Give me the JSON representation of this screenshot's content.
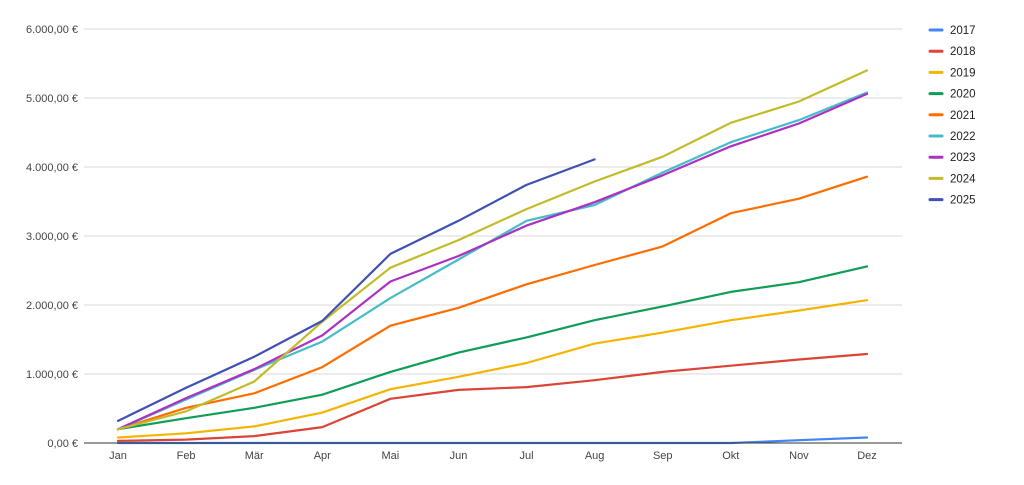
{
  "chart_data": {
    "type": "line",
    "title": "",
    "xlabel": "",
    "ylabel": "",
    "categories": [
      "Jan",
      "Feb",
      "Mär",
      "Apr",
      "Mai",
      "Jun",
      "Jul",
      "Aug",
      "Sep",
      "Okt",
      "Nov",
      "Dez"
    ],
    "ylim": [
      0,
      6000
    ],
    "y_ticks": [
      0,
      1000,
      2000,
      3000,
      4000,
      5000,
      6000
    ],
    "y_tick_labels": [
      "0,00 €",
      "1.000,00 €",
      "2.000,00 €",
      "3.000,00 €",
      "4.000,00 €",
      "5.000,00 €",
      "6.000,00 €"
    ],
    "grid": true,
    "legend_position": "right",
    "series": [
      {
        "name": "2017",
        "color": "#4285f4",
        "values": [
          0,
          0,
          0,
          0,
          0,
          0,
          0,
          0,
          0,
          0,
          40,
          80
        ]
      },
      {
        "name": "2018",
        "color": "#db4437",
        "values": [
          30,
          50,
          100,
          230,
          640,
          770,
          810,
          910,
          1030,
          1120,
          1210,
          1290
        ]
      },
      {
        "name": "2019",
        "color": "#f4b400",
        "values": [
          80,
          140,
          240,
          440,
          780,
          960,
          1160,
          1440,
          1600,
          1780,
          1920,
          2070
        ]
      },
      {
        "name": "2020",
        "color": "#0f9d58",
        "values": [
          200,
          360,
          510,
          700,
          1030,
          1310,
          1530,
          1780,
          1980,
          2190,
          2330,
          2560
        ]
      },
      {
        "name": "2021",
        "color": "#ff6d00",
        "values": [
          200,
          510,
          720,
          1100,
          1700,
          1960,
          2300,
          2580,
          2850,
          3330,
          3540,
          3860
        ]
      },
      {
        "name": "2022",
        "color": "#46bdc6",
        "values": [
          200,
          630,
          1060,
          1470,
          2100,
          2660,
          3220,
          3450,
          3920,
          4360,
          4680,
          5080
        ]
      },
      {
        "name": "2023",
        "color": "#ab30c4",
        "values": [
          200,
          650,
          1070,
          1560,
          2340,
          2710,
          3150,
          3490,
          3880,
          4300,
          4630,
          5060
        ]
      },
      {
        "name": "2024",
        "color": "#c2bb2a",
        "values": [
          200,
          460,
          890,
          1760,
          2540,
          2940,
          3390,
          3790,
          4150,
          4640,
          4950,
          5400
        ]
      },
      {
        "name": "2025",
        "color": "#3f51b5",
        "values": [
          320,
          800,
          1250,
          1770,
          2740,
          3220,
          3740,
          4110,
          null,
          null,
          null,
          null
        ]
      }
    ]
  }
}
